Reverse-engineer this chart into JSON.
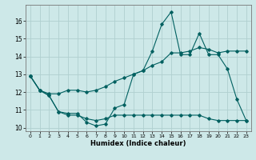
{
  "xlabel": "Humidex (Indice chaleur)",
  "ylabel": "",
  "bg_color": "#cde8e8",
  "grid_color": "#b0d0d0",
  "line_color": "#006060",
  "xlim": [
    -0.5,
    23.5
  ],
  "ylim": [
    9.8,
    16.9
  ],
  "xticks": [
    0,
    1,
    2,
    3,
    4,
    5,
    6,
    7,
    8,
    9,
    10,
    11,
    12,
    13,
    14,
    15,
    16,
    17,
    18,
    19,
    20,
    21,
    22,
    23
  ],
  "yticks": [
    10,
    11,
    12,
    13,
    14,
    15,
    16
  ],
  "series1_x": [
    0,
    1,
    2,
    3,
    4,
    5,
    6,
    7,
    8,
    9,
    10,
    11,
    12,
    13,
    14,
    15,
    16,
    17,
    18,
    19,
    20,
    21,
    22,
    23
  ],
  "series1_y": [
    12.9,
    12.1,
    11.8,
    10.9,
    10.8,
    10.8,
    10.3,
    10.1,
    10.2,
    11.1,
    11.3,
    13.0,
    13.2,
    14.3,
    15.8,
    16.5,
    14.1,
    14.1,
    15.3,
    14.1,
    14.1,
    13.3,
    11.6,
    10.4
  ],
  "series2_x": [
    0,
    1,
    2,
    3,
    4,
    5,
    6,
    7,
    8,
    9,
    10,
    11,
    12,
    13,
    14,
    15,
    16,
    17,
    18,
    19,
    20,
    21,
    22,
    23
  ],
  "series2_y": [
    12.9,
    12.1,
    11.8,
    10.9,
    10.7,
    10.7,
    10.5,
    10.4,
    10.5,
    10.7,
    10.7,
    10.7,
    10.7,
    10.7,
    10.7,
    10.7,
    10.7,
    10.7,
    10.7,
    10.5,
    10.4,
    10.4,
    10.4,
    10.4
  ],
  "series3_x": [
    0,
    1,
    2,
    3,
    4,
    5,
    6,
    7,
    8,
    9,
    10,
    11,
    12,
    13,
    14,
    15,
    16,
    17,
    18,
    19,
    20,
    21,
    22,
    23
  ],
  "series3_y": [
    12.9,
    12.1,
    11.9,
    11.9,
    12.1,
    12.1,
    12.0,
    12.1,
    12.3,
    12.6,
    12.8,
    13.0,
    13.2,
    13.5,
    13.7,
    14.2,
    14.2,
    14.3,
    14.5,
    14.4,
    14.2,
    14.3,
    14.3,
    14.3
  ]
}
